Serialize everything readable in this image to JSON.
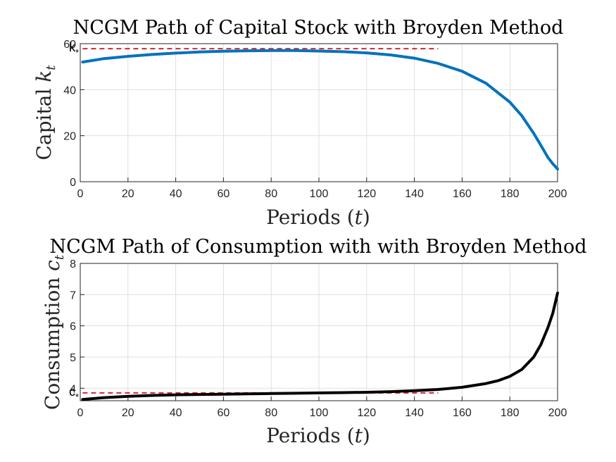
{
  "chart_data": [
    {
      "type": "line",
      "title": "NCGM Path of Capital Stock with Broyden Method",
      "xlabel_main": "Periods (",
      "xlabel_var": "t",
      "xlabel_end": ")",
      "ylabel_main": "Capital ",
      "ylabel_var": "k",
      "ylabel_sub": "t",
      "xlim": [
        0,
        200
      ],
      "ylim": [
        0,
        60
      ],
      "xticks": [
        0,
        20,
        40,
        60,
        80,
        100,
        120,
        140,
        160,
        180,
        200
      ],
      "yticks": [
        0,
        20,
        40,
        60
      ],
      "grid": true,
      "series": [
        {
          "color": "#0072bd",
          "x": [
            1,
            10,
            20,
            30,
            40,
            50,
            60,
            70,
            80,
            90,
            100,
            110,
            120,
            130,
            140,
            150,
            160,
            170,
            180,
            185,
            190,
            193,
            196,
            198,
            200
          ],
          "y": [
            52,
            53.5,
            54.5,
            55.3,
            55.9,
            56.4,
            56.7,
            56.9,
            57.0,
            57.0,
            56.8,
            56.5,
            56.0,
            55.1,
            53.7,
            51.4,
            48.0,
            42.8,
            34.6,
            28.7,
            21.0,
            15.8,
            10.5,
            7.8,
            5.5
          ]
        }
      ],
      "reference_line": {
        "y": 57.8,
        "x": [
          1,
          150
        ],
        "color": "#d62728",
        "style": "dashed"
      },
      "annotation": {
        "base": "k",
        "sub": "*",
        "y": 57.8
      }
    },
    {
      "type": "line",
      "title": "NCGM Path of Consumption with with Broyden Method",
      "xlabel_main": "Periods (",
      "xlabel_var": "t",
      "xlabel_end": ")",
      "ylabel_main": "Consumption ",
      "ylabel_var": "c",
      "ylabel_sub": "t",
      "xlim": [
        0,
        200
      ],
      "ylim": [
        3.6,
        8
      ],
      "xticks": [
        0,
        20,
        40,
        60,
        80,
        100,
        120,
        140,
        160,
        180,
        200
      ],
      "yticks": [
        4,
        5,
        6,
        7,
        8
      ],
      "grid": true,
      "series": [
        {
          "color": "#000000",
          "x": [
            1,
            10,
            20,
            30,
            40,
            50,
            60,
            70,
            80,
            90,
            100,
            110,
            120,
            130,
            140,
            150,
            160,
            170,
            175,
            180,
            185,
            190,
            193,
            196,
            198,
            200
          ],
          "y": [
            3.64,
            3.7,
            3.74,
            3.77,
            3.79,
            3.8,
            3.81,
            3.82,
            3.83,
            3.84,
            3.85,
            3.86,
            3.87,
            3.89,
            3.92,
            3.96,
            4.03,
            4.15,
            4.24,
            4.38,
            4.6,
            5.0,
            5.4,
            5.95,
            6.4,
            7.05
          ]
        }
      ],
      "reference_line": {
        "y": 3.85,
        "x": [
          1,
          150
        ],
        "color": "#d62728",
        "style": "dashed"
      },
      "annotation": {
        "base": "c",
        "sub": "*",
        "y": 3.85
      }
    }
  ]
}
